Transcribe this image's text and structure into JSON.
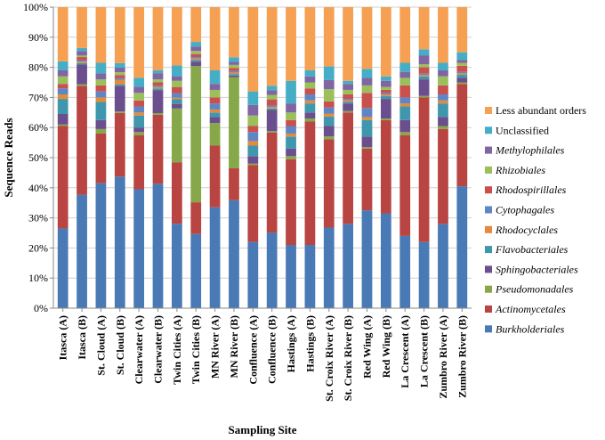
{
  "chart_data": {
    "type": "bar",
    "stacked": true,
    "percent_stacked": true,
    "xlabel": "Sampling Site",
    "ylabel": "Sequence Reads",
    "ylim": [
      0,
      100
    ],
    "y_ticks": [
      "0%",
      "10%",
      "20%",
      "30%",
      "40%",
      "50%",
      "60%",
      "70%",
      "80%",
      "90%",
      "100%"
    ],
    "grid": true,
    "legend_position": "right",
    "categories": [
      "Itasca (A)",
      "Itasca (B)",
      "St. Cloud (A)",
      "St. Cloud (B)",
      "Clearwater (A)",
      "Clearwater (B)",
      "Twin Cities (A)",
      "Twin Cities (B)",
      "MN River (A)",
      "MN River (B)",
      "Confluence (A)",
      "Confluence (B)",
      "Hastings (A)",
      "Hastings (B)",
      "St. Croix River (A)",
      "St. Croix River (B)",
      "Red Wing (A)",
      "Red Wing (B)",
      "La Crescent (A)",
      "La Crescent (B)",
      "Zumbro River (A)",
      "Zumbro River (B)"
    ],
    "series": [
      {
        "name": "Burkholderiales",
        "color": "#4a7ab5",
        "italic": true,
        "values": [
          26.5,
          37.5,
          41.5,
          43.5,
          39.5,
          40.5,
          27.5,
          24.5,
          33.5,
          35.5,
          22,
          25,
          21,
          21,
          26.5,
          28,
          32.5,
          31.5,
          24,
          22,
          28,
          40.5
        ]
      },
      {
        "name": "Actinomycetales",
        "color": "#b84542",
        "italic": true,
        "values": [
          34,
          36,
          16.5,
          21,
          18,
          22.5,
          20,
          10.5,
          20.5,
          10.5,
          25.5,
          33,
          28.5,
          41,
          29,
          37,
          20.5,
          31,
          33.5,
          48,
          31.5,
          34
        ]
      },
      {
        "name": "Pseudomonadales",
        "color": "#86a848",
        "italic": true,
        "values": [
          0.5,
          0.5,
          1.5,
          0.5,
          1,
          0.5,
          17.5,
          45,
          7.5,
          30,
          0.5,
          0.5,
          1,
          1,
          1,
          0.5,
          0.5,
          0.5,
          1,
          0.5,
          1,
          0.5
        ]
      },
      {
        "name": "Sphingobacteriales",
        "color": "#6b4e8d",
        "italic": true,
        "values": [
          3.5,
          6.5,
          3,
          8.5,
          1.5,
          7.5,
          1.5,
          1.5,
          2,
          0.5,
          2.5,
          7,
          2.5,
          2,
          3.5,
          2.5,
          3.5,
          6.5,
          4,
          5.5,
          3,
          1.5
        ]
      },
      {
        "name": "Flavobacteriales",
        "color": "#3f97ad",
        "italic": true,
        "values": [
          5,
          0.5,
          6,
          0.5,
          4,
          0.5,
          1.5,
          0.5,
          1.5,
          0.5,
          3.5,
          0.5,
          4,
          3,
          3,
          0.5,
          5.5,
          1,
          4.5,
          1,
          4.5,
          1
        ]
      },
      {
        "name": "Rhodocyclales",
        "color": "#e38a3b",
        "italic": true,
        "values": [
          1.5,
          0.5,
          1.5,
          1.5,
          1,
          0.5,
          0.5,
          0.5,
          1,
          0.5,
          1.5,
          0.5,
          1,
          1,
          1,
          0.5,
          1,
          0.5,
          1,
          0.5,
          1,
          0.5
        ]
      },
      {
        "name": "Cytophagales",
        "color": "#5f86c4",
        "italic": true,
        "values": [
          2,
          0.5,
          2,
          0.5,
          2,
          0.5,
          1.5,
          0.5,
          2,
          0.5,
          3,
          0.5,
          2.5,
          2,
          2,
          0.5,
          3,
          0.5,
          2,
          0.5,
          2,
          0.5
        ]
      },
      {
        "name": "Rhodospirillales",
        "color": "#c9504c",
        "italic": true,
        "values": [
          1.5,
          1,
          2,
          1,
          2,
          1,
          2,
          1,
          2,
          1,
          2,
          2,
          2,
          2,
          2,
          1.5,
          5,
          1,
          4,
          2,
          3,
          2
        ]
      },
      {
        "name": "Rhizobiales",
        "color": "#9bbf5a",
        "italic": true,
        "values": [
          2.5,
          0.5,
          2,
          1,
          2.5,
          1,
          2,
          1,
          2.5,
          1,
          3.5,
          1.5,
          2.5,
          2,
          4,
          1.5,
          2.5,
          1,
          2.5,
          1,
          3,
          1
        ]
      },
      {
        "name": "Methylophilales",
        "color": "#8065a3",
        "italic": true,
        "values": [
          2,
          1.5,
          2,
          1.5,
          2,
          2,
          1.5,
          1.5,
          2,
          1,
          3.5,
          1.5,
          3,
          2,
          3,
          2,
          2.5,
          2,
          2,
          3,
          2,
          1
        ]
      },
      {
        "name": "Unclassified",
        "color": "#45aec6",
        "italic": false,
        "values": [
          3,
          1,
          3.5,
          1.5,
          3,
          1,
          3.5,
          1.5,
          4.5,
          1.5,
          4.5,
          1.5,
          7.5,
          2,
          4.5,
          1,
          3,
          1.5,
          3,
          2,
          2.5,
          2.5
        ]
      },
      {
        "name": "Less abundant orders",
        "color": "#f5a052",
        "italic": false,
        "values": [
          18,
          13.5,
          18.5,
          18.5,
          23.5,
          20.5,
          19,
          11.5,
          21,
          16.5,
          28,
          26,
          24.5,
          21,
          19.5,
          24.5,
          20.5,
          23,
          18.5,
          14,
          18.5,
          15
        ]
      }
    ]
  }
}
